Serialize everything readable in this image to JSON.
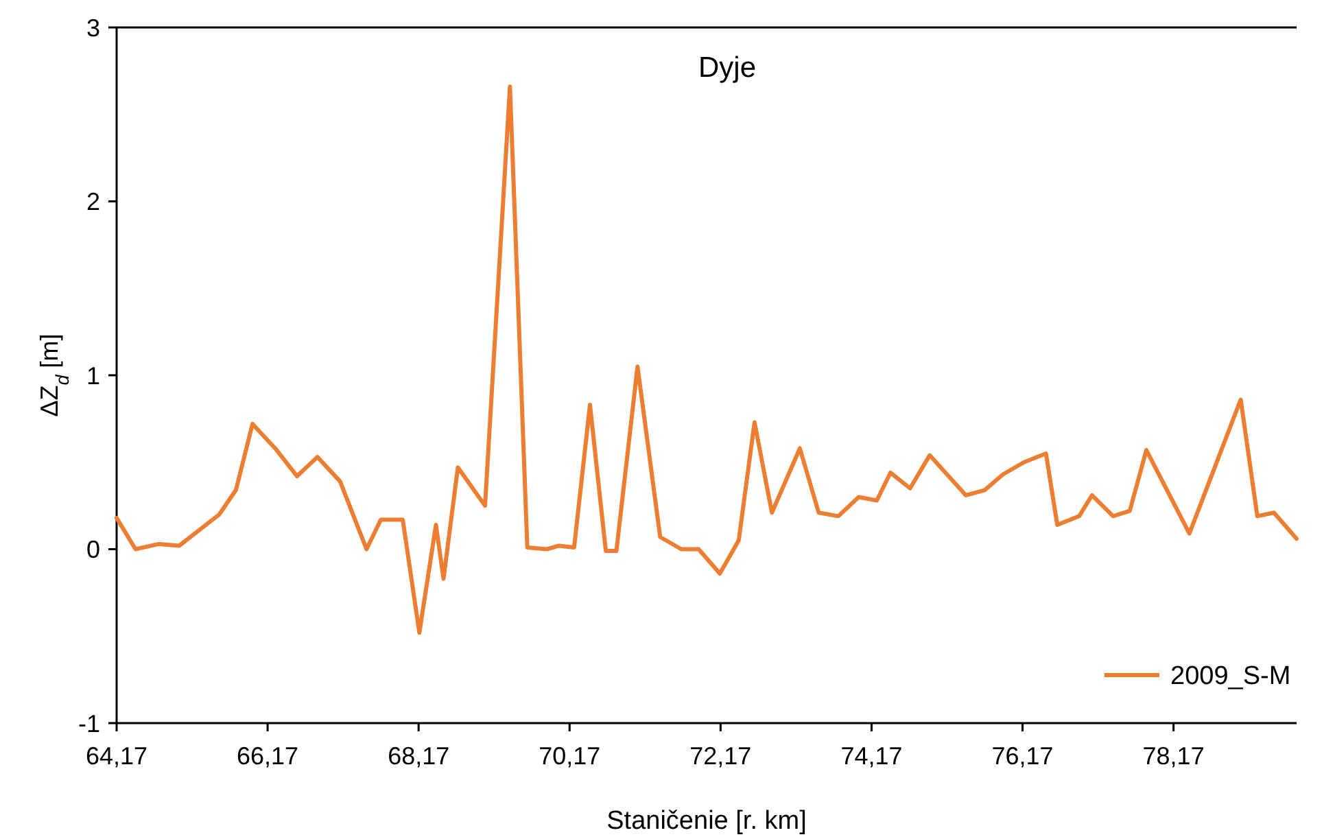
{
  "chart_data": {
    "type": "line",
    "title": "Dyje",
    "xlabel": "Staničenie [r. km]",
    "ylabel": "ΔZ$_{d}$ [m]",
    "xlim": [
      64.17,
      79.8
    ],
    "xticks": [
      {
        "value": 64.17,
        "label": "64,17"
      },
      {
        "value": 66.17,
        "label": "66,17"
      },
      {
        "value": 68.17,
        "label": "68,17"
      },
      {
        "value": 70.17,
        "label": "70,17"
      },
      {
        "value": 72.17,
        "label": "72,17"
      },
      {
        "value": 74.17,
        "label": "74,17"
      },
      {
        "value": 76.17,
        "label": "76,17"
      },
      {
        "value": 78.17,
        "label": "78,17"
      }
    ],
    "ylim": [
      -1,
      3
    ],
    "yticks": [
      -1,
      0,
      1,
      2,
      3
    ],
    "grid": false,
    "legend": "bottom right",
    "marker": "none",
    "line_style": "solid",
    "x": [
      64.17,
      64.42,
      64.73,
      65.0,
      65.53,
      65.75,
      65.97,
      66.27,
      66.56,
      66.83,
      67.13,
      67.48,
      67.67,
      67.96,
      68.18,
      68.4,
      68.5,
      68.69,
      69.05,
      69.38,
      69.61,
      69.87,
      70.03,
      70.23,
      70.44,
      70.65,
      70.79,
      71.07,
      71.37,
      71.65,
      71.88,
      72.16,
      72.41,
      72.62,
      72.85,
      73.22,
      73.47,
      73.73,
      74.0,
      74.24,
      74.42,
      74.68,
      74.94,
      75.42,
      75.67,
      75.91,
      76.19,
      76.48,
      76.63,
      76.92,
      77.09,
      77.37,
      77.59,
      77.81,
      78.38,
      79.06,
      79.28,
      79.5,
      79.8
    ],
    "series": [
      {
        "name": "2009_S-M",
        "color": "#ed7d31",
        "values": [
          0.18,
          0.0,
          0.03,
          0.02,
          0.2,
          0.34,
          0.72,
          0.58,
          0.42,
          0.53,
          0.39,
          0.0,
          0.17,
          0.17,
          -0.48,
          0.14,
          -0.17,
          0.47,
          0.25,
          2.66,
          0.01,
          0.0,
          0.02,
          0.01,
          0.83,
          -0.01,
          -0.01,
          1.05,
          0.07,
          0.0,
          0.0,
          -0.14,
          0.05,
          0.73,
          0.21,
          0.58,
          0.21,
          0.19,
          0.3,
          0.28,
          0.44,
          0.35,
          0.54,
          0.31,
          0.34,
          0.43,
          0.5,
          0.55,
          0.14,
          0.19,
          0.31,
          0.19,
          0.22,
          0.57,
          0.09,
          0.86,
          0.19,
          0.21,
          0.06
        ]
      }
    ]
  }
}
